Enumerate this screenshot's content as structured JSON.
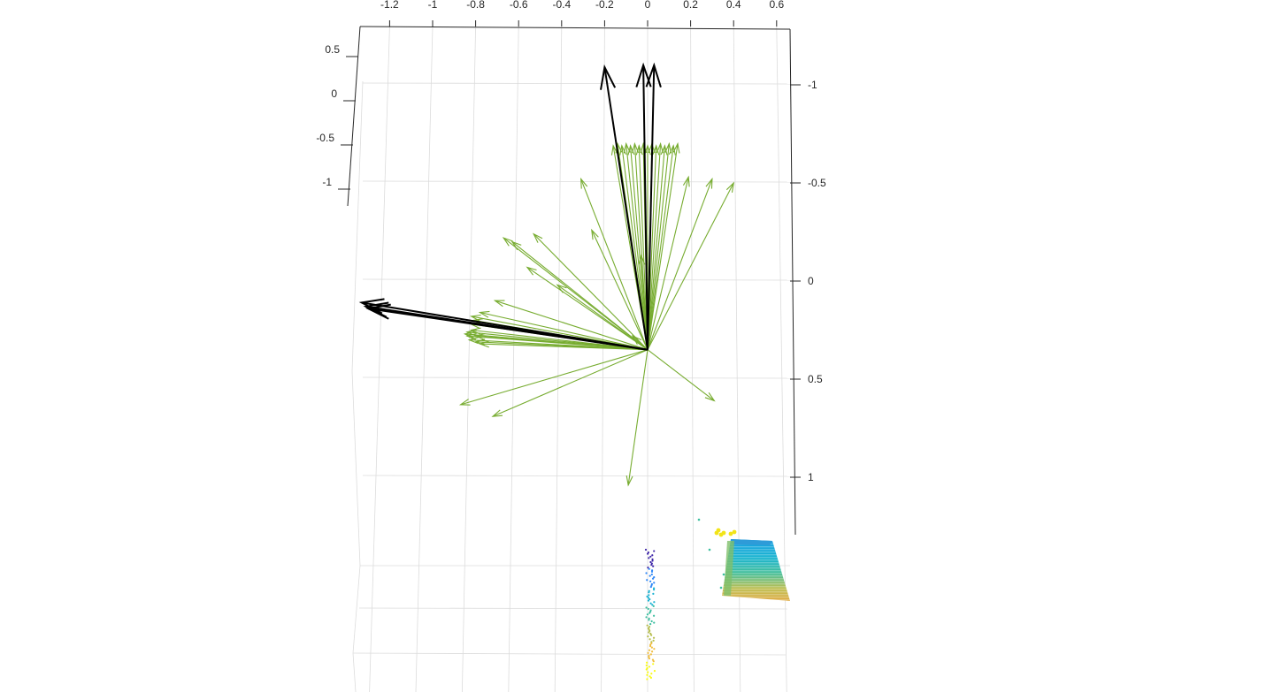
{
  "chart_data": {
    "type": "scatter",
    "title": "",
    "xlabel": "",
    "ylabel": "",
    "zlabel": "",
    "grid": true,
    "legend": "none",
    "x_ticks": [
      "-1.2",
      "-1",
      "-0.8",
      "-0.6",
      "-0.4",
      "-0.2",
      "0",
      "0.2",
      "0.4",
      "0.6"
    ],
    "x_tick_values": [
      -1.2,
      -1.0,
      -0.8,
      -0.6,
      -0.4,
      -0.2,
      0.0,
      0.2,
      0.4,
      0.6
    ],
    "y_ticks": [
      "-1",
      "-0.5",
      "0",
      "0.5",
      "1"
    ],
    "y_tick_values": [
      -1.0,
      -0.5,
      0.0,
      0.5,
      1.0
    ],
    "z_ticks": [
      "0.5",
      "0",
      "-0.5",
      "-1"
    ],
    "z_tick_values": [
      0.5,
      0.0,
      -0.5,
      -1.0
    ],
    "xlim": [
      -1.32,
      0.66
    ],
    "ylim": [
      -1.0,
      1.0
    ],
    "colors": {
      "green_vectors": "#77ac30",
      "black_vectors": "#000000",
      "grid": "#dcdcdc",
      "axis": "#262626",
      "colormap": [
        "#3e26a8",
        "#2e87f7",
        "#1ab2d2",
        "#3dbfa0",
        "#b5bd4b",
        "#f0bd3e",
        "#f9fb14"
      ]
    },
    "series": [
      {
        "kind": "quiver3",
        "color": "#77ac30",
        "origin": [
          0.0,
          0.35
        ],
        "tips": [
          [
            -0.16,
            -0.69
          ],
          [
            -0.14,
            -0.7
          ],
          [
            -0.12,
            -0.69
          ],
          [
            -0.1,
            -0.7
          ],
          [
            -0.08,
            -0.69
          ],
          [
            -0.06,
            -0.7
          ],
          [
            -0.04,
            -0.69
          ],
          [
            -0.02,
            -0.7
          ],
          [
            0.0,
            -0.69
          ],
          [
            0.02,
            -0.7
          ],
          [
            0.04,
            -0.69
          ],
          [
            0.06,
            -0.7
          ],
          [
            0.08,
            -0.69
          ],
          [
            0.1,
            -0.7
          ],
          [
            0.12,
            -0.69
          ],
          [
            0.14,
            -0.7
          ],
          [
            -0.31,
            -0.52
          ],
          [
            0.19,
            -0.53
          ],
          [
            0.3,
            -0.52
          ],
          [
            0.4,
            -0.5
          ],
          [
            -0.26,
            -0.26
          ],
          [
            -0.53,
            -0.24
          ],
          [
            -0.63,
            -0.2
          ],
          [
            -0.67,
            -0.22
          ],
          [
            -0.56,
            -0.07
          ],
          [
            -0.03,
            -0.13
          ],
          [
            -0.42,
            0.02
          ],
          [
            -0.71,
            0.1
          ],
          [
            -0.78,
            0.16
          ],
          [
            -0.82,
            0.18
          ],
          [
            -0.82,
            0.22
          ],
          [
            -0.82,
            0.25
          ],
          [
            -0.84,
            0.28
          ],
          [
            -0.8,
            0.31
          ],
          [
            -0.78,
            0.32
          ],
          [
            -0.84,
            0.26
          ],
          [
            -0.81,
            0.2
          ],
          [
            -0.83,
            0.3
          ],
          [
            -0.85,
            0.27
          ],
          [
            -0.07,
            0.28
          ],
          [
            -0.8,
            0.28
          ],
          [
            -0.87,
            0.63
          ],
          [
            -0.72,
            0.69
          ],
          [
            0.31,
            0.61
          ],
          [
            -0.09,
            1.04
          ]
        ]
      },
      {
        "kind": "quiver3",
        "color": "#000000",
        "origin": [
          0.0,
          0.35
        ],
        "tips": [
          [
            -0.2,
            -1.09
          ],
          [
            -0.02,
            -1.1
          ],
          [
            0.03,
            -1.1
          ],
          [
            -1.33,
            0.11
          ],
          [
            -1.31,
            0.13
          ],
          [
            -1.3,
            0.14
          ]
        ]
      },
      {
        "kind": "scatter3",
        "colormap": "parula"
      }
    ]
  }
}
